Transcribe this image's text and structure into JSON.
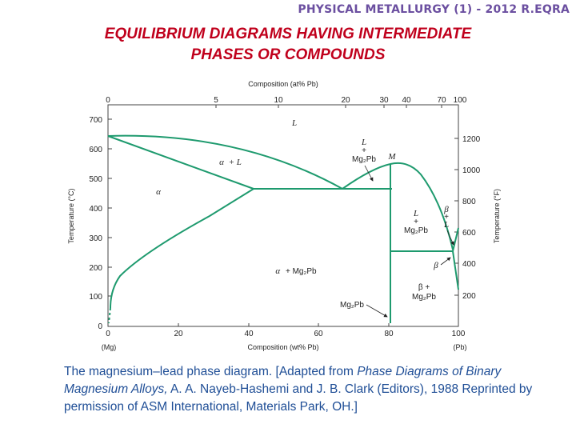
{
  "header": {
    "course": "PHYSICAL METALLURGY (1) - 2012 R.EQRA"
  },
  "title": {
    "line1": "EQUILIBRIUM DIAGRAMS HAVING INTERMEDIATE",
    "line2": "PHASES OR COMPOUNDS"
  },
  "diagram": {
    "top_axis_label": "Composition (at% Pb)",
    "top_ticks": [
      "0",
      "5",
      "10",
      "20",
      "30",
      "40",
      "70",
      "100"
    ],
    "bottom_axis_label": "Composition (wt% Pb)",
    "bottom_ticks": [
      "0",
      "20",
      "40",
      "60",
      "80",
      "100"
    ],
    "bottom_left_end": "(Mg)",
    "bottom_right_end": "(Pb)",
    "left_axis_label": "Temperature (°C)",
    "left_ticks": [
      "0",
      "100",
      "200",
      "300",
      "400",
      "500",
      "600",
      "700"
    ],
    "right_axis_label": "Temperature (°F)",
    "right_ticks": [
      "200",
      "400",
      "600",
      "800",
      "1000",
      "1200"
    ],
    "line_color": "#1e9a6e",
    "regions": {
      "liquid": "L",
      "alpha": "α",
      "alpha_plus_liquid_alpha": "α",
      "alpha_plus_liquid_rest": "+ L",
      "liquid_plus_compound_top": "L",
      "liquid_plus_compound_plus": "+",
      "liquid_plus_compound_bottom": "Mg₂Pb",
      "compound_label": "M",
      "liquid_plus_compound_right_top": "L",
      "liquid_plus_compound_right_plus": "+",
      "liquid_plus_compound_right_bottom": "Mg₂Pb",
      "beta_plus_liquid_top": "β",
      "beta_plus_liquid_plus": "+",
      "beta_plus_liquid_bottom": "L",
      "beta": "β",
      "alpha_plus_compound_alpha": "α",
      "alpha_plus_compound_rest": "+ Mg₂Pb",
      "beta_plus_compound_top": "β +",
      "beta_plus_compound_bottom": "Mg₂Pb",
      "compound_arrow_label": "Mg₂Pb"
    }
  },
  "caption": {
    "part1": "The magnesium–lead phase diagram. [Adapted from ",
    "book": "Phase Diagrams of Binary Magnesium Alloys,",
    "part2": " A. A. Nayeb-Hashemi and J. B. Clark (Editors), 1988 Reprinted by permission of ASM International, Materials Park, OH.]"
  }
}
